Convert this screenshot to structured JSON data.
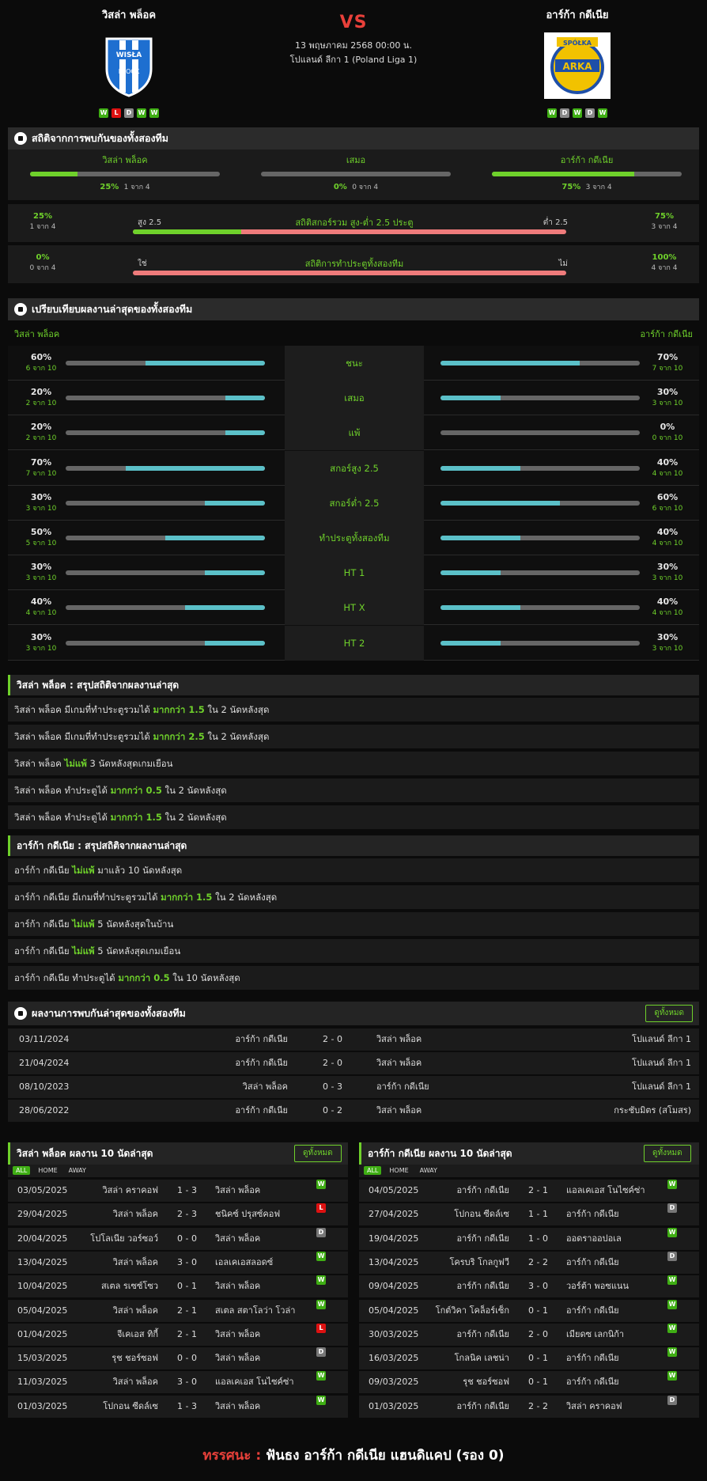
{
  "header": {
    "home": "วิสล่า พล็อค",
    "away": "อาร์ก้า กดีเนีย",
    "vs": "VS",
    "date": "13 พฤษภาคม 2568 00:00 น.",
    "league": "โปแลนด์ ลีกา 1 (Poland Liga 1)",
    "home_form": [
      "W",
      "L",
      "D",
      "W",
      "W"
    ],
    "away_form": [
      "W",
      "D",
      "W",
      "D",
      "W"
    ],
    "home_logo": {
      "text": "WISŁA PŁOCK",
      "color": "#1e6fd0"
    },
    "away_logo": {
      "text": "ARKA",
      "color": "#f2c200"
    }
  },
  "h2h_stats": {
    "title": "สถิติจากการพบกันของทั้งสองทีม",
    "home": {
      "label": "วิสล่า พล็อค",
      "pct": "25%",
      "count": "1 จาก 4",
      "fill": 0.25
    },
    "draw": {
      "label": "เสมอ",
      "pct": "0%",
      "count": "0 จาก 4",
      "fill": 0
    },
    "away": {
      "label": "อาร์ก้า กดีเนีย",
      "pct": "75%",
      "count": "3 จาก 4",
      "fill": 0.75
    },
    "ou": {
      "left_pct": "25%",
      "left_count": "1 จาก 4",
      "label_l": "สูง 2.5",
      "title": "สถิติสกอร์รวม สูง-ต่ำ 2.5 ประตู",
      "label_r": "ต่ำ 2.5",
      "right_pct": "75%",
      "right_count": "3 จาก 4",
      "fill": 0.25
    },
    "btts": {
      "left_pct": "0%",
      "left_count": "0 จาก 4",
      "label_l": "ใช่",
      "title": "สถิติการทำประตูทั้งสองทีม",
      "label_r": "ไม่",
      "right_pct": "100%",
      "right_count": "4 จาก 4",
      "fill": 0
    }
  },
  "compare": {
    "title": "เปรียบเทียบผลงานล่าสุดของทั้งสองทีม",
    "home": "วิสล่า พล็อค",
    "away": "อาร์ก้า กดีเนีย",
    "rows": [
      {
        "label": "ชนะ",
        "lp": "60%",
        "lc": "6 จาก 10",
        "lf": 0.6,
        "rp": "70%",
        "rc": "7 จาก 10",
        "rf": 0.7
      },
      {
        "label": "เสมอ",
        "lp": "20%",
        "lc": "2 จาก 10",
        "lf": 0.2,
        "rp": "30%",
        "rc": "3 จาก 10",
        "rf": 0.3
      },
      {
        "label": "แพ้",
        "lp": "20%",
        "lc": "2 จาก 10",
        "lf": 0.2,
        "rp": "0%",
        "rc": "0 จาก 10",
        "rf": 0
      },
      {
        "label": "สกอร์สูง 2.5",
        "lp": "70%",
        "lc": "7 จาก 10",
        "lf": 0.7,
        "rp": "40%",
        "rc": "4 จาก 10",
        "rf": 0.4
      },
      {
        "label": "สกอร์ต่ำ 2.5",
        "lp": "30%",
        "lc": "3 จาก 10",
        "lf": 0.3,
        "rp": "60%",
        "rc": "6 จาก 10",
        "rf": 0.6
      },
      {
        "label": "ทำประตูทั้งสองทีม",
        "lp": "50%",
        "lc": "5 จาก 10",
        "lf": 0.5,
        "rp": "40%",
        "rc": "4 จาก 10",
        "rf": 0.4
      },
      {
        "label": "HT 1",
        "lp": "30%",
        "lc": "3 จาก 10",
        "lf": 0.3,
        "rp": "30%",
        "rc": "3 จาก 10",
        "rf": 0.3
      },
      {
        "label": "HT X",
        "lp": "40%",
        "lc": "4 จาก 10",
        "lf": 0.4,
        "rp": "40%",
        "rc": "4 จาก 10",
        "rf": 0.4
      },
      {
        "label": "HT 2",
        "lp": "30%",
        "lc": "3 จาก 10",
        "lf": 0.3,
        "rp": "30%",
        "rc": "3 จาก 10",
        "rf": 0.3
      }
    ]
  },
  "home_summary": {
    "title": "วิสล่า พล็อค : สรุปสถิติจากผลงานล่าสุด",
    "rows": [
      [
        "วิสล่า พล็อค  มีเกมที่ทำประตูรวมได้ ",
        "มากกว่า 1.5",
        " ใน 2 นัดหลังสุด"
      ],
      [
        "วิสล่า พล็อค  มีเกมที่ทำประตูรวมได้ ",
        "มากกว่า 2.5",
        " ใน 2 นัดหลังสุด"
      ],
      [
        "วิสล่า พล็อค ",
        "ไม่แพ้",
        " 3  นัดหลังสุดเกมเยือน"
      ],
      [
        "วิสล่า พล็อค  ทำประตูได้ ",
        "มากกว่า 0.5",
        " ใน 2 นัดหลังสุด"
      ],
      [
        "วิสล่า พล็อค  ทำประตูได้ ",
        "มากกว่า 1.5",
        " ใน 2 นัดหลังสุด"
      ]
    ]
  },
  "away_summary": {
    "title": "อาร์ก้า กดีเนีย : สรุปสถิติจากผลงานล่าสุด",
    "rows": [
      [
        "อาร์ก้า กดีเนีย ",
        "ไม่แพ้",
        " มาแล้ว 10 นัดหลังสุด"
      ],
      [
        "อาร์ก้า กดีเนีย  มีเกมที่ทำประตูรวมได้ ",
        "มากกว่า 1.5",
        " ใน 2 นัดหลังสุด"
      ],
      [
        "อาร์ก้า กดีเนีย ",
        "ไม่แพ้",
        " 5  นัดหลังสุดในบ้าน"
      ],
      [
        "อาร์ก้า กดีเนีย ",
        "ไม่แพ้",
        " 5  นัดหลังสุดเกมเยือน"
      ],
      [
        "อาร์ก้า กดีเนีย  ทำประตูได้ ",
        "มากกว่า 0.5",
        " ใน 10 นัดหลังสุด"
      ]
    ]
  },
  "h2h_matches": {
    "title": "ผลงานการพบกันล่าสุดของทั้งสองทีม",
    "view_all": "ดูทั้งหมด",
    "rows": [
      {
        "date": "03/11/2024",
        "home": "อาร์ก้า กดีเนีย",
        "score": "2 - 0",
        "away": "วิสล่า พล็อค",
        "comp": "โปแลนด์ ลีกา 1"
      },
      {
        "date": "21/04/2024",
        "home": "อาร์ก้า กดีเนีย",
        "score": "2 - 0",
        "away": "วิสล่า พล็อค",
        "comp": "โปแลนด์ ลีกา 1"
      },
      {
        "date": "08/10/2023",
        "home": "วิสล่า พล็อค",
        "score": "0 - 3",
        "away": "อาร์ก้า กดีเนีย",
        "comp": "โปแลนด์ ลีกา 1"
      },
      {
        "date": "28/06/2022",
        "home": "อาร์ก้า กดีเนีย",
        "score": "0 - 2",
        "away": "วิสล่า พล็อค",
        "comp": "กระชับมิตร (สโมสร)"
      }
    ]
  },
  "home_last10": {
    "title": "วิสล่า พล็อค ผลงาน 10 นัดล่าสุด",
    "view_all": "ดูทั้งหมด",
    "tabs": [
      "ALL",
      "HOME",
      "AWAY"
    ],
    "rows": [
      {
        "date": "03/05/2025",
        "home": "วิสล่า คราคอฟ",
        "score": "1 - 3",
        "away": "วิสล่า พล็อค",
        "res": "W"
      },
      {
        "date": "29/04/2025",
        "home": "วิสล่า พล็อค",
        "score": "2 - 3",
        "away": "ชนิคซ์ ปรุสซ์คอฟ",
        "res": "L"
      },
      {
        "date": "20/04/2025",
        "home": "โปโลเนีย วอร์ซอว์",
        "score": "0 - 0",
        "away": "วิสล่า พล็อค",
        "res": "D"
      },
      {
        "date": "13/04/2025",
        "home": "วิสล่า พล็อค",
        "score": "3 - 0",
        "away": "เอลเคเอสลอดซ์",
        "res": "W"
      },
      {
        "date": "10/04/2025",
        "home": "สเตล รเซซ์โซว",
        "score": "0 - 1",
        "away": "วิสล่า พล็อค",
        "res": "W"
      },
      {
        "date": "05/04/2025",
        "home": "วิสล่า พล็อค",
        "score": "2 - 1",
        "away": "สเตล สตาโลว่า โวล่า",
        "res": "W"
      },
      {
        "date": "01/04/2025",
        "home": "จีเคเอส ทิกี้",
        "score": "2 - 1",
        "away": "วิสล่า พล็อค",
        "res": "L"
      },
      {
        "date": "15/03/2025",
        "home": "รุช ชอร์ซอฟ",
        "score": "0 - 0",
        "away": "วิสล่า พล็อค",
        "res": "D"
      },
      {
        "date": "11/03/2025",
        "home": "วิสล่า พล็อค",
        "score": "3 - 0",
        "away": "แอลเคเอส โนไซค์ซ่า",
        "res": "W"
      },
      {
        "date": "01/03/2025",
        "home": "โปกอน ซีดล์เซ",
        "score": "1 - 3",
        "away": "วิสล่า พล็อค",
        "res": "W"
      }
    ]
  },
  "away_last10": {
    "title": "อาร์ก้า กดีเนีย ผลงาน 10 นัดล่าสุด",
    "view_all": "ดูทั้งหมด",
    "tabs": [
      "ALL",
      "HOME",
      "AWAY"
    ],
    "rows": [
      {
        "date": "04/05/2025",
        "home": "อาร์ก้า กดีเนีย",
        "score": "2 - 1",
        "away": "แอลเคเอส โนไซค์ซ่า",
        "res": "W"
      },
      {
        "date": "27/04/2025",
        "home": "โปกอน ซีดล์เซ",
        "score": "1 - 1",
        "away": "อาร์ก้า กดีเนีย",
        "res": "D"
      },
      {
        "date": "19/04/2025",
        "home": "อาร์ก้า กดีเนีย",
        "score": "1 - 0",
        "away": "ออดราออปอเล",
        "res": "W"
      },
      {
        "date": "13/04/2025",
        "home": "โครบริ โกลกูฟวี",
        "score": "2 - 2",
        "away": "อาร์ก้า กดีเนีย",
        "res": "D"
      },
      {
        "date": "09/04/2025",
        "home": "อาร์ก้า กดีเนีย",
        "score": "3 - 0",
        "away": "วอร์ต้า พอซแนน",
        "res": "W"
      },
      {
        "date": "05/04/2025",
        "home": "โกต์วิคา โคล็อร์เซ็ก",
        "score": "0 - 1",
        "away": "อาร์ก้า กดีเนีย",
        "res": "W"
      },
      {
        "date": "30/03/2025",
        "home": "อาร์ก้า กดีเนีย",
        "score": "2 - 0",
        "away": "เมียดซ เลกนิก้า",
        "res": "W"
      },
      {
        "date": "16/03/2025",
        "home": "โกลนิค เลชน่า",
        "score": "0 - 1",
        "away": "อาร์ก้า กดีเนีย",
        "res": "W"
      },
      {
        "date": "09/03/2025",
        "home": "รุช ชอร์ซอฟ",
        "score": "0 - 1",
        "away": "อาร์ก้า กดีเนีย",
        "res": "W"
      },
      {
        "date": "01/03/2025",
        "home": "อาร์ก้า กดีเนีย",
        "score": "2 - 2",
        "away": "วิสล่า คราคอฟ",
        "res": "D"
      }
    ]
  },
  "prediction": {
    "label": "ทรรศนะ :",
    "text": " ฟันธง อาร์ก้า กดีเนีย แฮนดิแคป (รอง 0)"
  },
  "colors": {
    "accent": "#6fd12b",
    "teal": "#5bc0c8",
    "red": "#ef7b7b",
    "vs": "#e8403a"
  }
}
